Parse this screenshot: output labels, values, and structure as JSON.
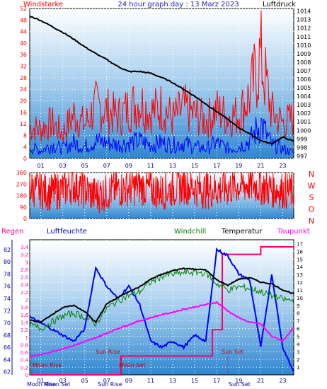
{
  "chart_data": [
    {
      "type": "line",
      "title": "24 hour graph day : 13 Marz 2023",
      "ylabel_left": "Windstarke",
      "ylabel_right": "Luftdruck",
      "x_ticks": [
        "01",
        "03",
        "05",
        "07",
        "09",
        "11",
        "13",
        "15",
        "17",
        "19",
        "21",
        "23"
      ],
      "y_left_ticks": [
        0,
        4,
        8,
        12,
        16,
        20,
        24,
        28,
        32,
        36,
        40,
        44,
        48,
        52
      ],
      "y_left_range": [
        0,
        52
      ],
      "y_right_ticks": [
        997,
        998,
        999,
        1000,
        1001,
        1002,
        1003,
        1004,
        1005,
        1006,
        1007,
        1008,
        1009,
        1010,
        1011,
        1012,
        1013,
        1014
      ],
      "y_right_range": [
        996.7,
        1014.3
      ],
      "series": [
        {
          "name": "Luftdruck",
          "color": "#000000",
          "axis": "right",
          "x": [
            0,
            1,
            2,
            3,
            4,
            5,
            6,
            7,
            8,
            9,
            10,
            11,
            12,
            13,
            14,
            15,
            16,
            17,
            18,
            19,
            20,
            21,
            22,
            23,
            24
          ],
          "values": [
            1013.4,
            1012.9,
            1012.2,
            1011.5,
            1010.7,
            1009.8,
            1009.0,
            1008.3,
            1007.5,
            1006.9,
            1006.9,
            1006.7,
            1006.2,
            1005.6,
            1004.8,
            1004.0,
            1003.1,
            1002.2,
            1001.3,
            1000.3,
            999.6,
            998.8,
            998.4,
            999.2,
            998.7
          ]
        },
        {
          "name": "Windboen",
          "color": "#ff0000",
          "axis": "left",
          "x": [
            0,
            1,
            2,
            3,
            4,
            5,
            6,
            7,
            8,
            9,
            10,
            11,
            12,
            13,
            14,
            15,
            16,
            17,
            18,
            19,
            20,
            21,
            22,
            23,
            24
          ],
          "values": [
            15,
            14,
            17,
            12,
            21,
            16,
            25,
            23,
            20,
            24,
            27,
            22,
            25,
            19,
            24,
            21,
            18,
            23,
            20,
            21,
            30,
            49,
            22,
            17,
            19
          ]
        },
        {
          "name": "Windstarke",
          "color": "#0000ff",
          "axis": "left",
          "x": [
            0,
            1,
            2,
            3,
            4,
            5,
            6,
            7,
            8,
            9,
            10,
            11,
            12,
            13,
            14,
            15,
            16,
            17,
            18,
            19,
            20,
            21,
            22,
            23,
            24
          ],
          "values": [
            6,
            4,
            7,
            5,
            8,
            6,
            9,
            8,
            7,
            8,
            9,
            7,
            8,
            7,
            8,
            6,
            5,
            8,
            5,
            6,
            9,
            18,
            7,
            5,
            3
          ]
        }
      ]
    },
    {
      "type": "line",
      "ylabel_right": [
        "N",
        "W",
        "S",
        "O",
        "N"
      ],
      "y_ticks": [
        0,
        90,
        180,
        270,
        360
      ],
      "y_range": [
        0,
        360
      ],
      "series": [
        {
          "name": "Windrichtung",
          "color": "#ff0000",
          "x": [
            0,
            2,
            4,
            6,
            8,
            10,
            12,
            14,
            16,
            18,
            20,
            22,
            24
          ],
          "values": [
            240,
            200,
            260,
            180,
            230,
            250,
            210,
            260,
            220,
            240,
            270,
            230,
            210
          ]
        }
      ]
    },
    {
      "type": "line",
      "labels": {
        "regen": "Regen",
        "luftfeuchte": "Luftfeuchte",
        "windchill": "Windchill",
        "temperatur": "Temperatur",
        "taupunkt": "Taupunkt"
      },
      "y_regen_ticks": [
        "0",
        "0.2",
        "0.4",
        "0.6",
        "0.8",
        "1",
        "1.2",
        "1.4",
        "1.6",
        "1.8",
        "2",
        "2.2",
        "2.4",
        "2.6",
        "2.8",
        "3",
        "3.2",
        "3.4"
      ],
      "y_humidity_ticks": [
        62,
        64,
        66,
        68,
        70,
        72,
        74,
        76,
        78,
        80,
        82
      ],
      "y_humidity_range": [
        61.5,
        83.6
      ],
      "y_temp_ticks": [
        1,
        2,
        3,
        4,
        5,
        6,
        7,
        8,
        9,
        10,
        11,
        12,
        13,
        14,
        15,
        16,
        17
      ],
      "y_temp_range": [
        0,
        17.5
      ],
      "x_ticks": [
        "01",
        "03",
        "05",
        "07",
        "09",
        "11",
        "13",
        "15",
        "17",
        "19",
        "21",
        "23"
      ],
      "annotations": {
        "moon_rise": "Moon Rise",
        "moon_set": "Moon Set",
        "sun_rise": "Sun Rise",
        "sun_set": "Sun Set"
      },
      "bottom_labels": [
        "Moon Rise",
        "Sun Rise",
        "Moon Set",
        "Sun Set"
      ],
      "series": [
        {
          "name": "Temperatur",
          "color": "#000000",
          "axis": "temp",
          "x": [
            0,
            1,
            2,
            3,
            4,
            5,
            6,
            7,
            8,
            9,
            10,
            11,
            12,
            13,
            14,
            15,
            16,
            17,
            18,
            19,
            20,
            21,
            22,
            23,
            24
          ],
          "values": [
            7.1,
            6.8,
            7.8,
            8.7,
            9.0,
            8.2,
            6.8,
            9.2,
            10.0,
            10.8,
            11.4,
            12.4,
            13.0,
            13.5,
            13.8,
            13.7,
            13.6,
            12.3,
            11.6,
            12.4,
            12.6,
            12.0,
            11.8,
            11.0,
            10.5
          ]
        },
        {
          "name": "Windchill",
          "color": "#008000",
          "axis": "temp",
          "x": [
            0,
            1,
            2,
            3,
            4,
            5,
            6,
            7,
            8,
            9,
            10,
            11,
            12,
            13,
            14,
            15,
            16,
            17,
            18,
            19,
            20,
            21,
            22,
            23,
            24
          ],
          "values": [
            6.5,
            6.0,
            6.8,
            7.6,
            8.0,
            7.5,
            6.6,
            8.6,
            9.6,
            10.3,
            10.8,
            12.0,
            12.8,
            13.0,
            13.2,
            13.3,
            13.2,
            11.8,
            11.0,
            11.4,
            11.2,
            10.8,
            10.2,
            9.8,
            9.6
          ]
        },
        {
          "name": "Taupunkt",
          "color": "#ff00ff",
          "axis": "temp",
          "x": [
            0,
            1,
            2,
            3,
            4,
            5,
            6,
            7,
            8,
            9,
            10,
            11,
            12,
            13,
            14,
            15,
            16,
            17,
            18,
            19,
            20,
            21,
            22,
            23,
            24
          ],
          "values": [
            2.4,
            2.6,
            3.0,
            3.4,
            3.8,
            4.3,
            4.8,
            5.4,
            6.0,
            6.5,
            7.0,
            7.4,
            7.8,
            8.1,
            8.5,
            8.8,
            9.1,
            9.4,
            8.3,
            7.4,
            6.8,
            6.6,
            5.0,
            4.4,
            6.1
          ]
        },
        {
          "name": "Luftfeuchte",
          "color": "#0000ff",
          "axis": "humidity",
          "x": [
            0,
            1,
            2,
            3,
            4,
            5,
            6,
            7,
            8,
            9,
            10,
            11,
            12,
            13,
            14,
            15,
            16,
            17,
            18,
            19,
            20,
            21,
            22,
            23,
            24
          ],
          "values": [
            71,
            70,
            69,
            68,
            67,
            69,
            79,
            76,
            74,
            76,
            73,
            67,
            66,
            67,
            66,
            68,
            67,
            82,
            81,
            78,
            77,
            66,
            78,
            66,
            62
          ]
        },
        {
          "name": "Regen",
          "color": "#ff0066",
          "axis": "regen",
          "x": [
            0,
            8.3,
            8.3,
            16.6,
            16.6,
            17.5,
            17.5,
            21,
            21,
            24
          ],
          "values": [
            0,
            0,
            0.5,
            0.5,
            1.2,
            1.2,
            3.2,
            3.2,
            3.4,
            3.4
          ]
        }
      ]
    }
  ]
}
